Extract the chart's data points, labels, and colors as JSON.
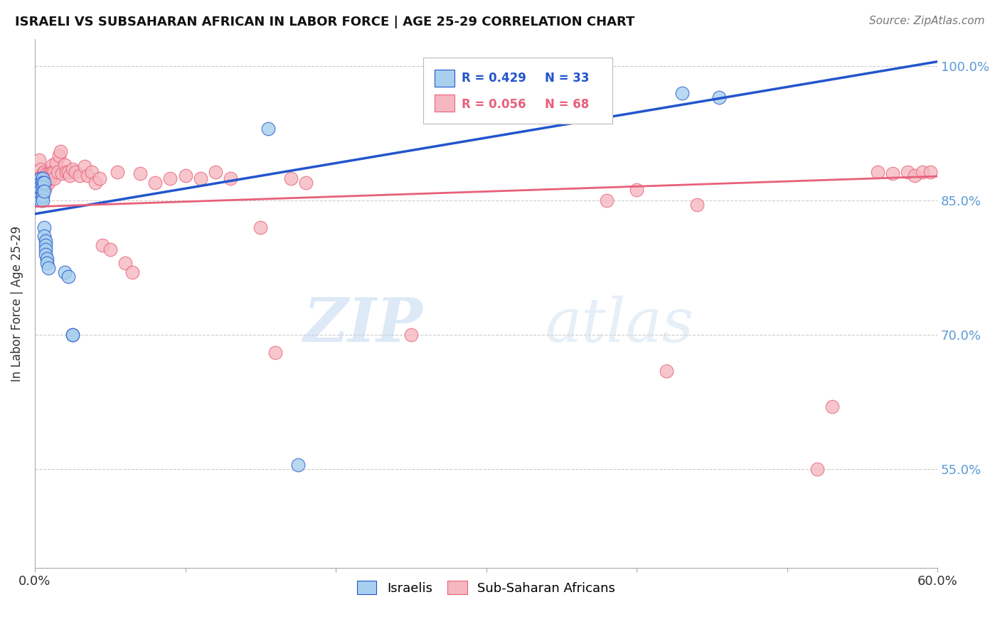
{
  "title": "ISRAELI VS SUBSAHARAN AFRICAN IN LABOR FORCE | AGE 25-29 CORRELATION CHART",
  "source": "Source: ZipAtlas.com",
  "ylabel": "In Labor Force | Age 25-29",
  "xmin": 0.0,
  "xmax": 0.6,
  "ymin": 0.44,
  "ymax": 1.03,
  "yticks": [
    0.55,
    0.7,
    0.85,
    1.0
  ],
  "ytick_labels": [
    "55.0%",
    "70.0%",
    "85.0%",
    "100.0%"
  ],
  "xticks": [
    0.0,
    0.1,
    0.2,
    0.3,
    0.4,
    0.5,
    0.6
  ],
  "xtick_labels": [
    "0.0%",
    "",
    "",
    "",
    "",
    "",
    "60.0%"
  ],
  "watermark_zip": "ZIP",
  "watermark_atlas": "atlas",
  "legend_R1": "R = 0.429",
  "legend_N1": "N = 33",
  "legend_R2": "R = 0.056",
  "legend_N2": "N = 68",
  "israeli_color": "#A8CFEE",
  "subsaharan_color": "#F5B8C0",
  "line_blue": "#2255CC",
  "line_pink": "#E8607A",
  "blue_trend_x0": 0.0,
  "blue_trend_y0": 0.835,
  "blue_trend_x1": 0.6,
  "blue_trend_y1": 1.005,
  "pink_trend_x0": 0.0,
  "pink_trend_y0": 0.843,
  "pink_trend_x1": 0.6,
  "pink_trend_y1": 0.877,
  "israeli_x": [
    0.003,
    0.003,
    0.004,
    0.004,
    0.004,
    0.004,
    0.004,
    0.004,
    0.005,
    0.005,
    0.005,
    0.005,
    0.005,
    0.005,
    0.006,
    0.006,
    0.006,
    0.006,
    0.007,
    0.007,
    0.007,
    0.007,
    0.008,
    0.008,
    0.009,
    0.02,
    0.022,
    0.025,
    0.025,
    0.155,
    0.175,
    0.43,
    0.455
  ],
  "israeli_y": [
    0.87,
    0.868,
    0.875,
    0.87,
    0.866,
    0.862,
    0.855,
    0.85,
    0.875,
    0.87,
    0.865,
    0.86,
    0.855,
    0.85,
    0.87,
    0.86,
    0.82,
    0.81,
    0.805,
    0.8,
    0.795,
    0.79,
    0.785,
    0.78,
    0.775,
    0.77,
    0.765,
    0.7,
    0.7,
    0.93,
    0.555,
    0.97,
    0.965
  ],
  "subsaharan_x": [
    0.003,
    0.004,
    0.004,
    0.005,
    0.005,
    0.005,
    0.006,
    0.006,
    0.007,
    0.007,
    0.007,
    0.008,
    0.008,
    0.009,
    0.009,
    0.01,
    0.01,
    0.011,
    0.012,
    0.012,
    0.013,
    0.013,
    0.014,
    0.015,
    0.016,
    0.017,
    0.018,
    0.02,
    0.021,
    0.022,
    0.023,
    0.025,
    0.027,
    0.03,
    0.033,
    0.035,
    0.038,
    0.04,
    0.043,
    0.045,
    0.05,
    0.055,
    0.06,
    0.065,
    0.07,
    0.08,
    0.09,
    0.1,
    0.11,
    0.12,
    0.13,
    0.15,
    0.16,
    0.17,
    0.18,
    0.25,
    0.38,
    0.4,
    0.42,
    0.44,
    0.52,
    0.53,
    0.56,
    0.57,
    0.58,
    0.585,
    0.59,
    0.595
  ],
  "subsaharan_y": [
    0.895,
    0.885,
    0.87,
    0.88,
    0.878,
    0.872,
    0.882,
    0.875,
    0.875,
    0.87,
    0.865,
    0.88,
    0.875,
    0.875,
    0.87,
    0.882,
    0.875,
    0.882,
    0.89,
    0.882,
    0.882,
    0.875,
    0.892,
    0.882,
    0.9,
    0.905,
    0.88,
    0.89,
    0.882,
    0.882,
    0.878,
    0.885,
    0.882,
    0.878,
    0.888,
    0.878,
    0.882,
    0.87,
    0.875,
    0.8,
    0.795,
    0.882,
    0.78,
    0.77,
    0.88,
    0.87,
    0.875,
    0.878,
    0.875,
    0.882,
    0.875,
    0.82,
    0.68,
    0.875,
    0.87,
    0.7,
    0.85,
    0.862,
    0.66,
    0.845,
    0.55,
    0.62,
    0.882,
    0.88,
    0.882,
    0.878,
    0.882,
    0.882
  ]
}
